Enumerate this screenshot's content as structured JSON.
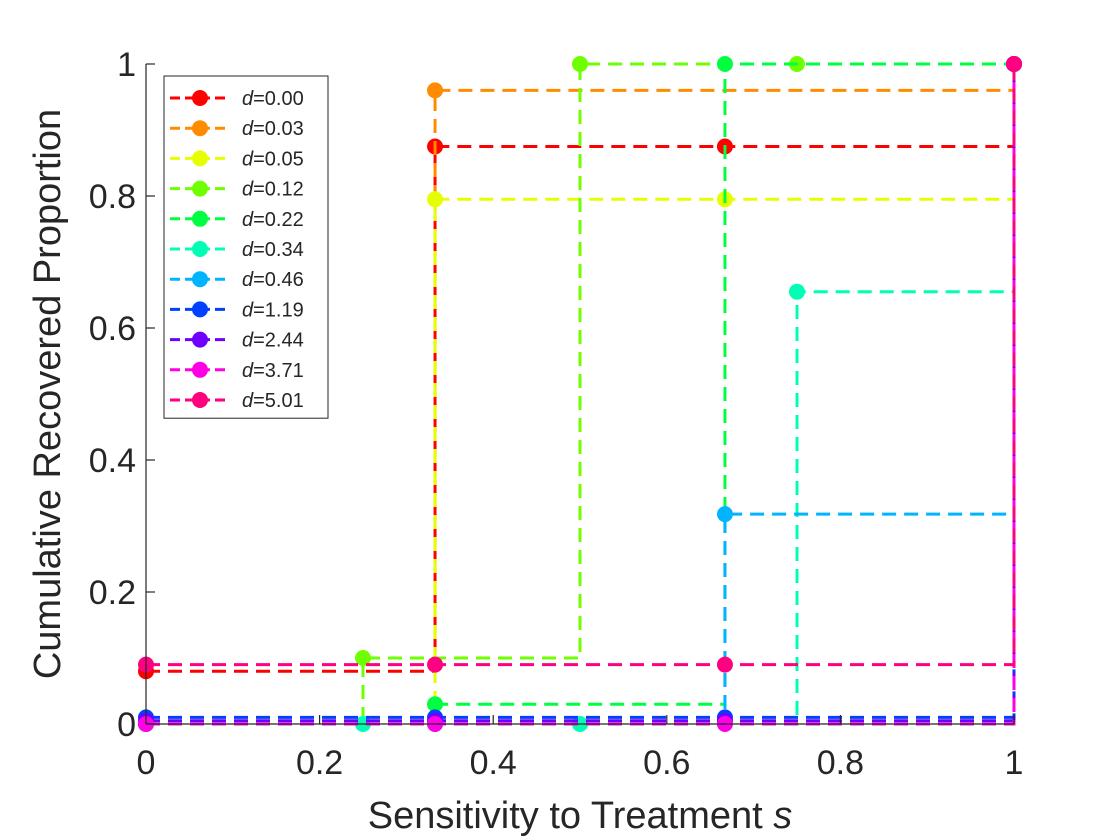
{
  "chart_data": {
    "type": "line",
    "step": "post",
    "title": "",
    "xlabel": "Sensitivity to Treatment",
    "xlabel_symbol": "s",
    "ylabel": "Cumulative Recovered Proportion",
    "xlim": [
      0,
      1
    ],
    "ylim": [
      0,
      1
    ],
    "xticks": [
      0,
      0.2,
      0.4,
      0.6,
      0.8,
      1
    ],
    "xtick_labels": [
      "0",
      "0.2",
      "0.4",
      "0.6",
      "0.8",
      "1"
    ],
    "yticks": [
      0,
      0.2,
      0.4,
      0.6,
      0.8,
      1
    ],
    "ytick_labels": [
      "0",
      "0.2",
      "0.4",
      "0.6",
      "0.8",
      "1"
    ],
    "grid": false,
    "legend": {
      "position": "top-left",
      "prefix": "d"
    },
    "line_style": "dashed",
    "marker": "filled-circle",
    "series": [
      {
        "name": "=0.00",
        "color": "#ff0000",
        "x": [
          0,
          0.333,
          0.667,
          1
        ],
        "y": [
          0.08,
          0.875,
          0.875,
          1
        ]
      },
      {
        "name": "=0.03",
        "color": "#ff8c00",
        "x": [
          0,
          0.333,
          1
        ],
        "y": [
          0,
          0.96,
          1
        ]
      },
      {
        "name": "=0.05",
        "color": "#e6ff00",
        "x": [
          0,
          0.333,
          0.667,
          1
        ],
        "y": [
          0,
          0.795,
          0.795,
          1
        ]
      },
      {
        "name": "=0.12",
        "color": "#6fff00",
        "x": [
          0,
          0.25,
          0.5,
          0.75,
          1
        ],
        "y": [
          0,
          0.1,
          1,
          1,
          1
        ]
      },
      {
        "name": "=0.22",
        "color": "#00ff40",
        "x": [
          0,
          0.333,
          0.667,
          1
        ],
        "y": [
          0,
          0.03,
          1,
          1
        ]
      },
      {
        "name": "=0.34",
        "color": "#00ffb4",
        "x": [
          0,
          0.25,
          0.5,
          0.75,
          1
        ],
        "y": [
          0,
          0,
          0,
          0.655,
          1
        ]
      },
      {
        "name": "=0.46",
        "color": "#00b4ff",
        "x": [
          0,
          0.333,
          0.667,
          1
        ],
        "y": [
          0,
          0,
          0.318,
          1
        ]
      },
      {
        "name": "=1.19",
        "color": "#0040ff",
        "x": [
          0,
          0.333,
          0.667,
          1
        ],
        "y": [
          0.01,
          0.01,
          0.01,
          1
        ]
      },
      {
        "name": "=2.44",
        "color": "#6f00ff",
        "x": [
          0,
          0.333,
          0.667,
          1
        ],
        "y": [
          0.005,
          0.005,
          0.005,
          1
        ]
      },
      {
        "name": "=3.71",
        "color": "#ff00e6",
        "x": [
          0,
          0.333,
          0.667,
          1
        ],
        "y": [
          0,
          0,
          0,
          1
        ]
      },
      {
        "name": "=5.01",
        "color": "#ff0080",
        "x": [
          0,
          0.333,
          0.667,
          1
        ],
        "y": [
          0.09,
          0.09,
          0.09,
          1
        ]
      }
    ]
  }
}
